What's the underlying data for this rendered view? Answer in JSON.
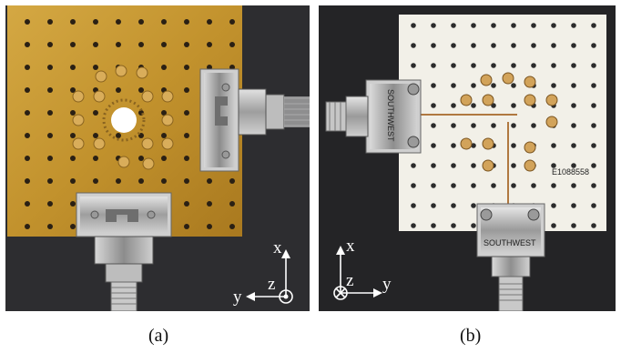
{
  "colors": {
    "background_dark": "#2b2b2d",
    "pcb_gold": "#c79a34",
    "pcb_white": "#f2f0e8",
    "connector_silver": "#b8b8b8",
    "axis_white": "#ffffff"
  },
  "panels": [
    {
      "caption": "(a)",
      "board": "gold-plated-pcb",
      "axes": {
        "x": "x",
        "y": "y",
        "z": "z",
        "z_direction": "out-of-page"
      }
    },
    {
      "caption": "(b)",
      "board": "white-substrate-pcb",
      "connector_brand": "SOUTHWEST",
      "board_label": "E1088558",
      "axes": {
        "x": "x",
        "y": "y",
        "z": "z",
        "z_direction": "into-page"
      }
    }
  ]
}
